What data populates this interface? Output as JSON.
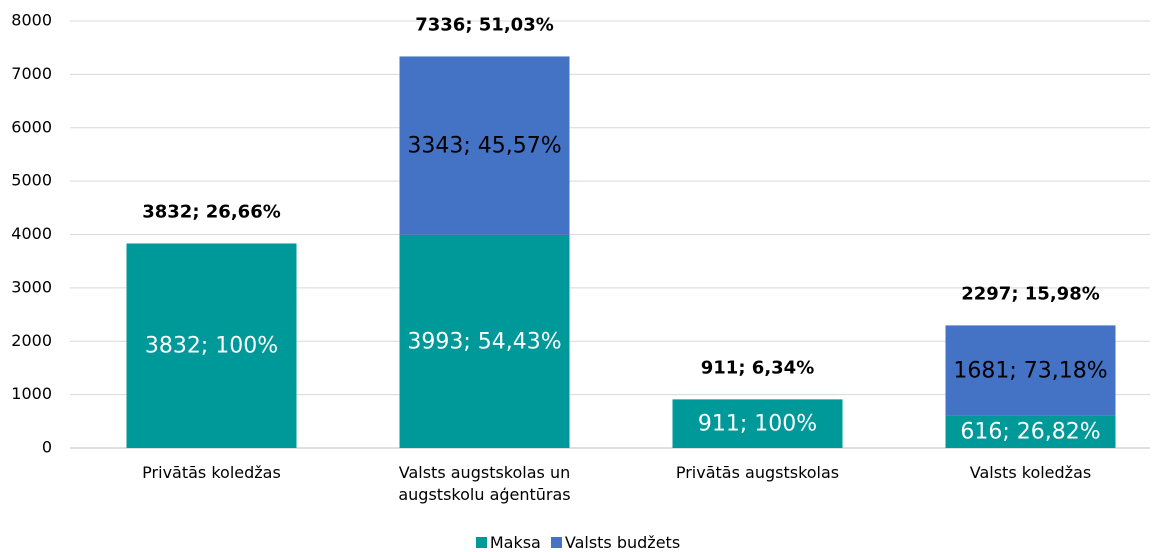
{
  "chart_data": {
    "type": "stacked_bar",
    "categories": [
      "Privātās koledžas",
      "Valsts augstskolas un augstskolu aģentūras",
      "Privātās augstskolas",
      "Valsts koledžas"
    ],
    "series": [
      {
        "name": "Maksa",
        "color": "#009999",
        "label_color": "#ffffff",
        "values": [
          3832,
          3993,
          911,
          616
        ],
        "value_labels": [
          "3832; 100%",
          "3993; 54,43%",
          "911; 100%",
          "616; 26,82%"
        ]
      },
      {
        "name": "Valsts budžets",
        "color": "#4472c4",
        "label_color": "#000000",
        "values": [
          null,
          3343,
          null,
          1681
        ],
        "value_labels": [
          null,
          "3343; 45,57%",
          null,
          "1681; 73,18%"
        ]
      }
    ],
    "total_labels": [
      "3832; 26,66%",
      "7336; 51,03%",
      "911; 6,34%",
      "2297; 15,98%"
    ],
    "ylim": [
      0,
      8000
    ],
    "yticks": [
      0,
      1000,
      2000,
      3000,
      4000,
      5000,
      6000,
      7000,
      8000
    ],
    "grid": true,
    "legend": "bottom"
  }
}
